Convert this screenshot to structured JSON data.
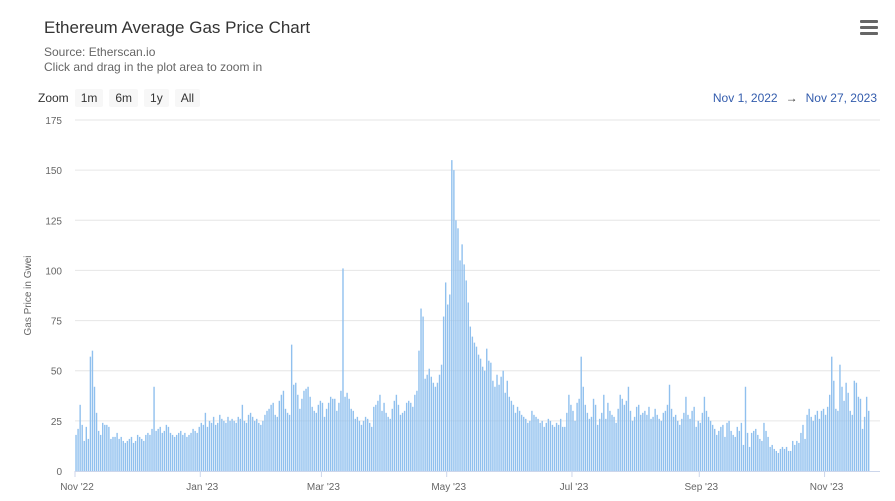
{
  "header": {
    "title": "Ethereum Average Gas Price Chart",
    "source": "Source: Etherscan.io",
    "hint": "Click and drag in the plot area to zoom in"
  },
  "menu": {
    "icon": "hamburger-menu-icon"
  },
  "zoom": {
    "label": "Zoom",
    "buttons": [
      "1m",
      "6m",
      "1y",
      "All"
    ]
  },
  "range": {
    "from": "Nov 1, 2022",
    "arrow": "→",
    "to": "Nov 27, 2023"
  },
  "colors": {
    "bar": "#90c0ee",
    "grid": "#e6e6e6",
    "axis": "#ccd6eb",
    "link": "#335cad"
  },
  "chart_data": {
    "type": "bar",
    "ylabel": "Gas Price in Gwei",
    "ylim": [
      0,
      175
    ],
    "yticks": [
      0,
      25,
      50,
      75,
      100,
      125,
      150,
      175
    ],
    "xlim": [
      "2022-11-01",
      "2023-11-27"
    ],
    "xticks": [
      {
        "date": "2022-11-01",
        "label": "Nov '22"
      },
      {
        "date": "2023-01-01",
        "label": "Jan '23"
      },
      {
        "date": "2023-03-01",
        "label": "Mar '23"
      },
      {
        "date": "2023-05-01",
        "label": "May '23"
      },
      {
        "date": "2023-07-01",
        "label": "Jul '23"
      },
      {
        "date": "2023-09-01",
        "label": "Sep '23"
      },
      {
        "date": "2023-11-01",
        "label": "Nov '23"
      }
    ],
    "series": [
      {
        "start_date": "2022-11-01",
        "values": [
          18,
          21,
          33,
          23,
          15,
          22,
          16,
          57,
          60,
          42,
          29,
          20,
          18,
          24,
          23,
          23,
          22,
          16,
          17,
          17,
          19,
          16,
          17,
          15,
          14,
          15,
          16,
          17,
          14,
          15,
          18,
          17,
          16,
          15,
          18,
          19,
          18,
          21,
          42,
          20,
          21,
          22,
          19,
          20,
          23,
          22,
          19,
          18,
          17,
          18,
          19,
          20,
          18,
          19,
          17,
          18,
          19,
          21,
          20,
          19,
          22,
          24,
          23,
          29,
          22,
          25,
          24,
          27,
          23,
          24,
          28,
          26,
          25,
          24,
          27,
          25,
          26,
          25,
          24,
          27,
          26,
          33,
          25,
          24,
          28,
          29,
          27,
          25,
          26,
          24,
          23,
          25,
          28,
          30,
          31,
          33,
          34,
          28,
          27,
          35,
          38,
          40,
          31,
          29,
          28,
          63,
          43,
          44,
          38,
          31,
          36,
          40,
          41,
          42,
          37,
          32,
          30,
          29,
          33,
          35,
          34,
          27,
          31,
          34,
          37,
          36,
          36,
          30,
          34,
          40,
          101,
          37,
          39,
          36,
          31,
          30,
          26,
          27,
          25,
          23,
          25,
          27,
          26,
          24,
          22,
          32,
          33,
          35,
          38,
          30,
          34,
          29,
          27,
          26,
          31,
          35,
          38,
          33,
          28,
          29,
          30,
          34,
          35,
          34,
          32,
          38,
          40,
          60,
          81,
          77,
          46,
          48,
          51,
          47,
          44,
          42,
          44,
          48,
          53,
          77,
          94,
          83,
          88,
          155,
          150,
          125,
          121,
          105,
          113,
          103,
          95,
          84,
          72,
          67,
          64,
          62,
          58,
          56,
          52,
          50,
          61,
          55,
          54,
          45,
          42,
          48,
          43,
          47,
          50,
          39,
          45,
          37,
          35,
          33,
          29,
          32,
          30,
          28,
          27,
          26,
          24,
          25,
          30,
          28,
          27,
          26,
          24,
          25,
          22,
          24,
          26,
          25,
          23,
          22,
          24,
          23,
          26,
          22,
          22,
          29,
          38,
          33,
          30,
          25,
          34,
          36,
          57,
          42,
          33,
          29,
          26,
          27,
          36,
          33,
          23,
          26,
          29,
          38,
          26,
          34,
          30,
          28,
          27,
          24,
          31,
          38,
          36,
          33,
          35,
          42,
          30,
          25,
          27,
          32,
          33,
          28,
          29,
          30,
          28,
          32,
          26,
          27,
          31,
          28,
          26,
          25,
          29,
          30,
          33,
          43,
          31,
          27,
          28,
          25,
          23,
          26,
          29,
          37,
          28,
          26,
          30,
          32,
          22,
          25,
          24,
          29,
          37,
          30,
          27,
          25,
          23,
          21,
          18,
          20,
          22,
          23,
          17,
          24,
          25,
          20,
          18,
          17,
          22,
          20,
          24,
          13,
          42,
          19,
          12,
          19,
          20,
          21,
          18,
          16,
          15,
          24,
          20,
          17,
          12,
          13,
          11,
          10,
          9,
          11,
          12,
          11,
          12,
          10,
          10,
          15,
          13,
          15,
          14,
          19,
          23,
          16,
          28,
          31,
          27,
          25,
          28,
          30,
          26,
          30,
          31,
          28,
          32,
          38,
          57,
          45,
          31,
          30,
          53,
          42,
          35,
          44,
          39,
          30,
          28,
          45,
          44,
          37,
          36,
          21,
          27,
          37,
          30
        ]
      }
    ]
  }
}
